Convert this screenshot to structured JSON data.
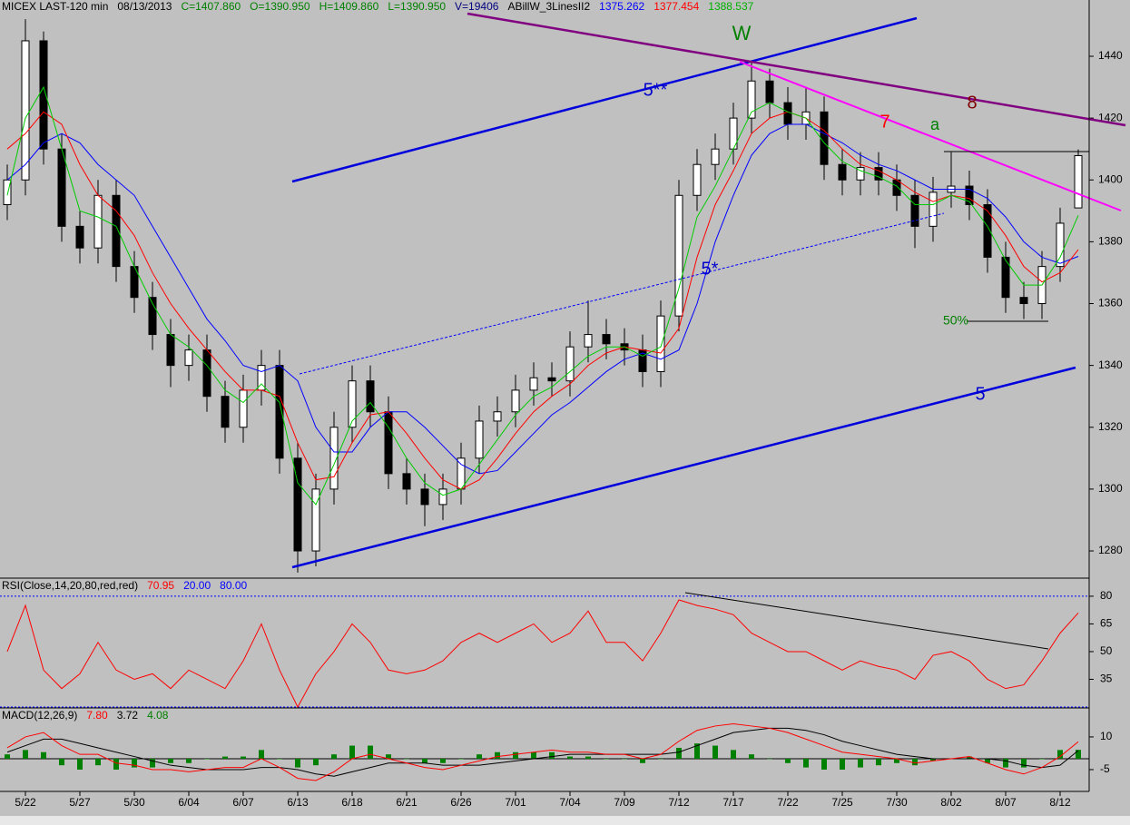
{
  "chart_data": {
    "type": "candlestick",
    "header": [
      {
        "text": "MICEX LAST-120 min",
        "color": "#000000"
      },
      {
        "text": "08/13/2013",
        "color": "#000000"
      },
      {
        "text": "C=1407.860",
        "color": "#008000"
      },
      {
        "text": "O=1390.950",
        "color": "#008000"
      },
      {
        "text": "H=1409.860",
        "color": "#008000"
      },
      {
        "text": "L=1390.950",
        "color": "#008000"
      },
      {
        "text": "V=19406",
        "color": "#000080"
      },
      {
        "text": "ABillW_3LinesII2",
        "color": "#000000"
      },
      {
        "text": "1375.262",
        "color": "#0000ff"
      },
      {
        "text": "1377.454",
        "color": "#ff0000"
      },
      {
        "text": "1388.537",
        "color": "#00b000"
      }
    ],
    "annotations": [
      {
        "text": "W",
        "color": "#008000"
      },
      {
        "text": "5**",
        "color": "#0000cc"
      },
      {
        "text": "5*",
        "color": "#0000cc"
      },
      {
        "text": "5",
        "color": "#0000cc"
      },
      {
        "text": "7",
        "color": "#ff0000"
      },
      {
        "text": "8",
        "color": "#800000"
      },
      {
        "text": "a",
        "color": "#008000"
      },
      {
        "text": "50%",
        "color": "#008000"
      }
    ],
    "categories": [
      null,
      "5/22",
      null,
      null,
      "5/27",
      null,
      null,
      "5/30",
      null,
      null,
      "6/04",
      null,
      null,
      "6/07",
      null,
      null,
      "6/13",
      null,
      null,
      "6/18",
      null,
      null,
      "6/21",
      null,
      null,
      "6/26",
      null,
      null,
      "7/01",
      null,
      null,
      "7/04",
      null,
      null,
      "7/09",
      null,
      null,
      "7/12",
      null,
      null,
      "7/17",
      null,
      null,
      "7/22",
      null,
      null,
      "7/25",
      null,
      null,
      "7/30",
      null,
      null,
      "8/02",
      null,
      null,
      "8/07",
      null,
      null,
      "8/12",
      null
    ],
    "open": [
      1392,
      1400,
      1445,
      1410,
      1385,
      1378,
      1395,
      1372,
      1362,
      1350,
      1340,
      1345,
      1330,
      1320,
      1332,
      1340,
      1310,
      1280,
      1300,
      1320,
      1335,
      1325,
      1305,
      1300,
      1295,
      1300,
      1310,
      1322,
      1325,
      1332,
      1336,
      1335,
      1346,
      1350,
      1347,
      1345,
      1338,
      1356,
      1395,
      1405,
      1410,
      1420,
      1432,
      1425,
      1418,
      1422,
      1405,
      1400,
      1404,
      1400,
      1395,
      1385,
      1396,
      1398,
      1392,
      1375,
      1362,
      1360,
      1372,
      1390.95
    ],
    "high": [
      1405,
      1452,
      1448,
      1415,
      1390,
      1400,
      1400,
      1377,
      1367,
      1355,
      1350,
      1350,
      1335,
      1337,
      1345,
      1345,
      1315,
      1305,
      1325,
      1340,
      1340,
      1330,
      1310,
      1305,
      1305,
      1315,
      1327,
      1330,
      1337,
      1341,
      1341,
      1351,
      1361,
      1355,
      1352,
      1350,
      1361,
      1400,
      1410,
      1415,
      1425,
      1438,
      1436,
      1430,
      1430,
      1427,
      1410,
      1409,
      1409,
      1405,
      1400,
      1401,
      1409,
      1403,
      1397,
      1380,
      1367,
      1377,
      1391,
      1409.86
    ],
    "low": [
      1387,
      1395,
      1405,
      1380,
      1373,
      1373,
      1367,
      1357,
      1345,
      1333,
      1335,
      1325,
      1315,
      1315,
      1327,
      1305,
      1273,
      1275,
      1295,
      1315,
      1320,
      1300,
      1295,
      1288,
      1290,
      1295,
      1305,
      1317,
      1320,
      1327,
      1330,
      1330,
      1341,
      1342,
      1340,
      1333,
      1333,
      1351,
      1390,
      1400,
      1405,
      1415,
      1420,
      1413,
      1413,
      1400,
      1395,
      1395,
      1395,
      1390,
      1378,
      1380,
      1391,
      1387,
      1370,
      1357,
      1355,
      1355,
      1367,
      1390.95
    ],
    "close": [
      1400,
      1445,
      1410,
      1385,
      1378,
      1395,
      1372,
      1362,
      1350,
      1340,
      1345,
      1330,
      1320,
      1332,
      1340,
      1310,
      1280,
      1300,
      1320,
      1335,
      1325,
      1305,
      1300,
      1295,
      1300,
      1310,
      1322,
      1325,
      1332,
      1336,
      1335,
      1346,
      1350,
      1347,
      1345,
      1338,
      1356,
      1395,
      1405,
      1410,
      1420,
      1432,
      1425,
      1418,
      1422,
      1405,
      1400,
      1404,
      1400,
      1395,
      1385,
      1396,
      1398,
      1392,
      1375,
      1362,
      1360,
      1372,
      1386,
      1407.86
    ],
    "series": [
      {
        "color": "#0000ff",
        "values": [
          1400,
          1405,
          1412,
          1415,
          1412,
          1405,
          1400,
          1395,
          1385,
          1375,
          1365,
          1355,
          1348,
          1340,
          1338,
          1340,
          1335,
          1320,
          1312,
          1312,
          1320,
          1325,
          1325,
          1320,
          1314,
          1308,
          1305,
          1306,
          1312,
          1318,
          1324,
          1328,
          1333,
          1338,
          1342,
          1344,
          1342,
          1345,
          1360,
          1380,
          1395,
          1408,
          1415,
          1418,
          1418,
          1415,
          1412,
          1408,
          1405,
          1403,
          1400,
          1397,
          1397,
          1397,
          1394,
          1388,
          1380,
          1375,
          1373,
          1375.26
        ]
      },
      {
        "color": "#ff0000",
        "values": [
          1410,
          1415,
          1422,
          1418,
          1405,
          1395,
          1390,
          1382,
          1370,
          1360,
          1352,
          1345,
          1338,
          1332,
          1332,
          1330,
          1315,
          1303,
          1304,
          1315,
          1324,
          1325,
          1318,
          1310,
          1303,
          1300,
          1303,
          1310,
          1318,
          1325,
          1330,
          1334,
          1340,
          1344,
          1346,
          1345,
          1344,
          1352,
          1375,
          1392,
          1403,
          1415,
          1420,
          1422,
          1420,
          1416,
          1410,
          1405,
          1403,
          1400,
          1396,
          1393,
          1395,
          1394,
          1390,
          1382,
          1372,
          1367,
          1370,
          1377.45
        ]
      },
      {
        "color": "#00cc00",
        "values": [
          1395,
          1420,
          1430,
          1410,
          1390,
          1388,
          1385,
          1372,
          1360,
          1350,
          1346,
          1340,
          1332,
          1328,
          1334,
          1328,
          1302,
          1295,
          1308,
          1322,
          1328,
          1320,
          1310,
          1302,
          1298,
          1300,
          1308,
          1316,
          1324,
          1330,
          1333,
          1338,
          1343,
          1346,
          1346,
          1343,
          1346,
          1365,
          1388,
          1398,
          1410,
          1422,
          1425,
          1422,
          1420,
          1412,
          1406,
          1403,
          1401,
          1398,
          1392,
          1392,
          1395,
          1393,
          1385,
          1374,
          1366,
          1366,
          1375,
          1388.54
        ]
      }
    ],
    "ylim": [
      1271.2,
      1458.2
    ],
    "yticks": [
      1280,
      1300,
      1320,
      1340,
      1360,
      1380,
      1400,
      1420,
      1440
    ],
    "rsi": {
      "header": [
        {
          "text": "RSI(Close,14,20,80,red,red)",
          "color": "#000000"
        },
        {
          "text": "70.95",
          "color": "#ff0000"
        },
        {
          "text": "20.00",
          "color": "#0000ff"
        },
        {
          "text": "80.00",
          "color": "#0000ff"
        }
      ],
      "color": "#ff0000",
      "values": [
        50,
        75,
        40,
        30,
        38,
        55,
        40,
        35,
        38,
        30,
        40,
        35,
        30,
        45,
        65,
        40,
        20,
        38,
        50,
        65,
        55,
        40,
        38,
        40,
        45,
        55,
        60,
        55,
        60,
        65,
        55,
        60,
        72,
        55,
        55,
        45,
        60,
        78,
        75,
        73,
        70,
        60,
        55,
        50,
        50,
        45,
        40,
        45,
        42,
        40,
        35,
        48,
        50,
        45,
        35,
        30,
        32,
        45,
        60,
        70.95
      ],
      "levels": [
        20,
        80
      ],
      "ylim": [
        19.5,
        89.8
      ],
      "yticks": [
        35,
        50,
        65,
        80
      ]
    },
    "macd": {
      "header": [
        {
          "text": "MACD(12,26,9)",
          "color": "#000000"
        },
        {
          "text": "7.80",
          "color": "#ff0000"
        },
        {
          "text": "3.72",
          "color": "#000000"
        },
        {
          "text": "4.08",
          "color": "#008000"
        }
      ],
      "macd": {
        "color": "#ff0000",
        "values": [
          5,
          10,
          12,
          6,
          2,
          2,
          -2,
          -3,
          -5,
          -5,
          -6,
          -5,
          -4,
          -4,
          0,
          -4,
          -9,
          -10,
          -6,
          0,
          2,
          0,
          -2,
          -4,
          -5,
          -3,
          -1,
          1,
          2,
          3,
          4,
          3,
          3,
          2,
          2,
          0,
          2,
          8,
          13,
          15,
          16,
          15,
          14,
          12,
          9,
          6,
          3,
          2,
          1,
          0,
          -2,
          -1,
          0,
          1,
          -2,
          -5,
          -7,
          -4,
          1,
          7.8
        ]
      },
      "signal": {
        "color": "#000000",
        "values": [
          3,
          6,
          9,
          9,
          7,
          5,
          3,
          1,
          -1,
          -3,
          -4,
          -5,
          -5,
          -5,
          -4,
          -4,
          -5,
          -7,
          -8,
          -6,
          -4,
          -2,
          -2,
          -2,
          -3,
          -3,
          -3,
          -2,
          -1,
          0,
          1,
          2,
          2,
          2,
          2,
          2,
          2,
          3,
          6,
          9,
          12,
          13,
          14,
          14,
          13,
          11,
          8,
          6,
          4,
          2,
          1,
          0,
          0,
          0,
          0,
          -1,
          -3,
          -4,
          -3,
          3.72
        ]
      },
      "histogram": {
        "color": "#008000",
        "values": [
          2,
          4,
          3,
          -3,
          -5,
          -3,
          -5,
          -4,
          -4,
          -2,
          -2,
          0,
          1,
          1,
          4,
          0,
          -4,
          -3,
          2,
          6,
          6,
          2,
          0,
          -2,
          -2,
          0,
          2,
          3,
          3,
          3,
          3,
          1,
          1,
          0,
          0,
          -2,
          0,
          5,
          7,
          6,
          4,
          2,
          0,
          -2,
          -4,
          -5,
          -5,
          -4,
          -3,
          -2,
          -3,
          -1,
          0,
          1,
          -2,
          -4,
          -4,
          0,
          4,
          4.08
        ]
      },
      "ylim": [
        -15,
        23.3
      ],
      "yticks": [
        -5,
        10
      ]
    }
  }
}
